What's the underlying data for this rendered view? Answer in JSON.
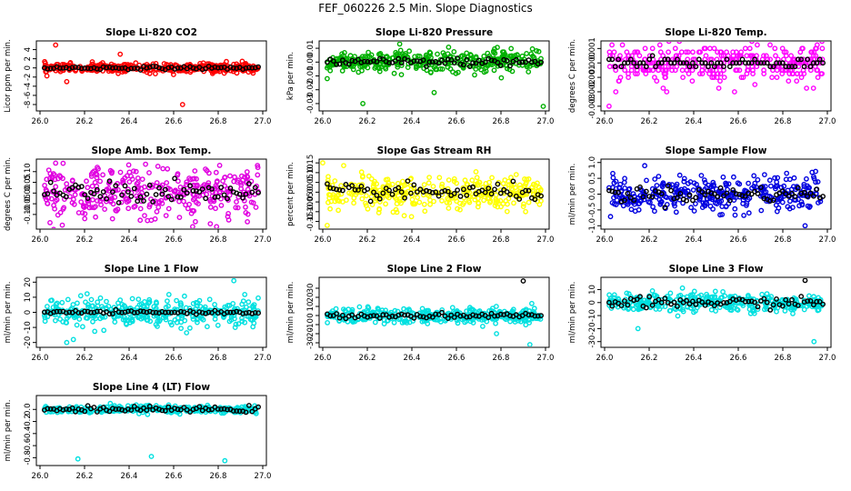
{
  "title": "FEF_060226  2.5 Min. Slope Diagnostics",
  "chart_data": [
    {
      "type": "scatter",
      "title": "Slope Li-820 CO2",
      "ylabel": "Licor ppm per min.",
      "xlim": [
        26.0,
        27.0
      ],
      "xticks": [
        "26.0",
        "26.2",
        "26.4",
        "26.6",
        "26.8",
        "27.0"
      ],
      "ylim": [
        -9,
        5.5
      ],
      "yticks": [
        -8,
        -6,
        -4,
        -2,
        0,
        2,
        4
      ],
      "ytick_labels": [
        "-8",
        "-6",
        "-4",
        "-2",
        "0",
        "2",
        "4"
      ],
      "color": "#ff0000",
      "spread": 1.0,
      "outliers": [
        [
          26.07,
          5
        ],
        [
          26.36,
          3
        ],
        [
          26.64,
          -8
        ],
        [
          26.12,
          -3
        ]
      ],
      "black_spread": 0.35
    },
    {
      "type": "scatter",
      "title": "Slope Li-820 Pressure",
      "ylabel": "kPa per min.",
      "xlim": [
        26.0,
        27.0
      ],
      "xticks": [
        "26.0",
        "26.2",
        "26.4",
        "26.6",
        "26.8",
        "27.0"
      ],
      "ylim": [
        -0.034,
        0.014
      ],
      "yticks": [
        0.01,
        0.0,
        -0.01,
        -0.02,
        -0.03
      ],
      "ytick_labels": [
        "0.01",
        "0.00",
        "-0.01",
        "-0.02",
        "-0.03"
      ],
      "color": "#00b000",
      "spread": 0.008,
      "outliers": [
        [
          26.18,
          -0.03
        ],
        [
          26.99,
          -0.032
        ],
        [
          26.02,
          -0.012
        ],
        [
          26.5,
          -0.022
        ]
      ],
      "black_spread": 0.003
    },
    {
      "type": "scatter",
      "title": "Slope Li-820 Temp.",
      "ylabel": "degrees C per min.",
      "xlim": [
        26.0,
        27.0
      ],
      "xticks": [
        "26.0",
        "26.2",
        "26.4",
        "26.6",
        "26.8",
        "27.0"
      ],
      "ylim": [
        -0.0032,
        0.0014
      ],
      "yticks": [
        0.001,
        0.0,
        -0.001,
        -0.002,
        -0.003
      ],
      "ytick_labels": [
        "0.001",
        "0.000",
        "-0.001",
        "-0.002",
        "-0.003"
      ],
      "color": "#ff00ff",
      "spread": 0.0012,
      "quantize": 0.00025,
      "outliers": [
        [
          26.02,
          -0.003
        ],
        [
          26.08,
          0.0013
        ],
        [
          26.05,
          -0.002
        ]
      ],
      "black_spread": 0.0004
    },
    {
      "type": "scatter",
      "title": "Slope Amb. Box Temp.",
      "ylabel": "degrees C per min.",
      "xlim": [
        26.0,
        27.0
      ],
      "xticks": [
        "26.0",
        "26.2",
        "26.4",
        "26.6",
        "26.8",
        "27.0"
      ],
      "ylim": [
        -0.16,
        0.15
      ],
      "yticks": [
        0.1,
        0.05,
        0.0,
        -0.05,
        -0.1
      ],
      "ytick_labels": [
        "0.10",
        "0.05",
        "0.00",
        "-0.05",
        "-0.10"
      ],
      "color": "#e000e0",
      "spread": 0.12,
      "outliers": [
        [
          26.07,
          0.14
        ],
        [
          26.1,
          -0.15
        ]
      ],
      "black_spread": 0.05
    },
    {
      "type": "scatter",
      "title": "Slope Gas Stream RH",
      "ylabel": "percent per min.",
      "xlim": [
        26.0,
        27.0
      ],
      "xticks": [
        "26.0",
        "26.2",
        "26.4",
        "26.6",
        "26.8",
        "27.0"
      ],
      "ylim": [
        -0.18,
        0.16
      ],
      "yticks": [
        0.15,
        0.1,
        0.05,
        0.0,
        -0.05,
        -0.1,
        -0.15
      ],
      "ytick_labels": [
        "0.15",
        "0.10",
        "0.05",
        "0.00",
        "-0.05",
        "-0.10",
        "-0.15"
      ],
      "color": "#ffff00",
      "spread": 0.08,
      "outliers": [
        [
          26.0,
          0.15
        ],
        [
          26.02,
          -0.17
        ]
      ],
      "black_spread": 0.04
    },
    {
      "type": "scatter",
      "title": "Slope Sample Flow",
      "ylabel": "ml/min per min.",
      "xlim": [
        26.0,
        27.0
      ],
      "xticks": [
        "26.0",
        "26.2",
        "26.4",
        "26.6",
        "26.8",
        "27.0"
      ],
      "ylim": [
        -1.05,
        1.05
      ],
      "yticks": [
        1.0,
        0.5,
        0.0,
        -0.5,
        -1.0
      ],
      "ytick_labels": [
        "1.0",
        "0.5",
        "0.0",
        "-0.5",
        "-1.0"
      ],
      "color": "#0000e0",
      "spread": 0.55,
      "outliers": [
        [
          26.18,
          0.9
        ],
        [
          26.9,
          -1.0
        ]
      ],
      "black_spread": 0.25
    },
    {
      "type": "scatter",
      "title": "Slope Line 1 Flow",
      "ylabel": "ml/min per min.",
      "xlim": [
        26.0,
        27.0
      ],
      "xticks": [
        "26.0",
        "26.2",
        "26.4",
        "26.6",
        "26.8",
        "27.0"
      ],
      "ylim": [
        -22,
        22
      ],
      "yticks": [
        20,
        10,
        0,
        -10,
        -20
      ],
      "ytick_labels": [
        "20",
        "10",
        "0",
        "-10",
        "-20"
      ],
      "color": "#00e0e0",
      "spread": 9,
      "outliers": [
        [
          26.87,
          21
        ],
        [
          26.12,
          -20
        ],
        [
          26.15,
          -18
        ]
      ],
      "black_spread": 1
    },
    {
      "type": "scatter",
      "title": "Slope Line 2 Flow",
      "ylabel": "ml/min per min.",
      "xlim": [
        26.0,
        27.0
      ],
      "xticks": [
        "26.0",
        "26.2",
        "26.4",
        "26.6",
        "26.8",
        "27.0"
      ],
      "ylim": [
        -33,
        40
      ],
      "yticks": [
        30,
        20,
        10,
        0,
        -10,
        -20,
        -30
      ],
      "ytick_labels": [
        "30",
        "20",
        "10",
        "0",
        "-10",
        "-20",
        "-30"
      ],
      "color": "#00e0e0",
      "spread": 8,
      "outliers": [
        [
          26.93,
          -32
        ],
        [
          26.78,
          -20
        ]
      ],
      "black_spread": 3,
      "black_outliers": [
        [
          26.9,
          38
        ]
      ]
    },
    {
      "type": "scatter",
      "title": "Slope Line 3 Flow",
      "ylabel": "ml/min per min.",
      "xlim": [
        26.0,
        27.0
      ],
      "xticks": [
        "26.0",
        "26.2",
        "26.4",
        "26.6",
        "26.8",
        "27.0"
      ],
      "ylim": [
        -33,
        18
      ],
      "yticks": [
        10,
        0,
        -10,
        -20,
        -30
      ],
      "ytick_labels": [
        "10",
        "0",
        "-10",
        "-20",
        "-30"
      ],
      "color": "#00e0e0",
      "spread": 7,
      "outliers": [
        [
          26.94,
          -30
        ],
        [
          26.15,
          -20
        ]
      ],
      "black_spread": 4,
      "black_outliers": [
        [
          26.9,
          17
        ]
      ]
    },
    {
      "type": "scatter",
      "title": "Slope Line 4 (LT) Flow",
      "ylabel": "ml/min per min.",
      "xlim": [
        26.0,
        27.0
      ],
      "xticks": [
        "26.0",
        "26.2",
        "26.4",
        "26.6",
        "26.8",
        "27.0"
      ],
      "ylim": [
        -0.9,
        0.2
      ],
      "yticks": [
        0.0,
        -0.2,
        -0.4,
        -0.6,
        -0.8
      ],
      "ytick_labels": [
        "0.0",
        "-0.2",
        "-0.4",
        "-0.6",
        "-0.8"
      ],
      "color": "#00e0e0",
      "spread": 0.06,
      "outliers": [
        [
          26.17,
          -0.82
        ],
        [
          26.5,
          -0.78
        ],
        [
          26.83,
          -0.85
        ]
      ],
      "black_spread": 0.04
    }
  ]
}
